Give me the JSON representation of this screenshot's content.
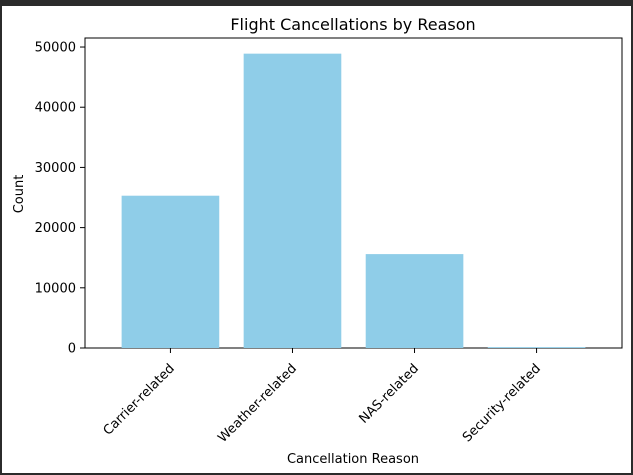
{
  "chart_data": {
    "type": "bar",
    "title": "Flight Cancellations by Reason",
    "xlabel": "Cancellation Reason",
    "ylabel": "Count",
    "categories": [
      "Carrier-related",
      "Weather-related",
      "NAS-related",
      "Security-related"
    ],
    "values": [
      25300,
      48900,
      15600,
      150
    ],
    "ylim": [
      0,
      51500
    ],
    "yticks": [
      0,
      10000,
      20000,
      30000,
      40000,
      50000
    ],
    "bar_color": "#8fcde8",
    "grid": false
  }
}
